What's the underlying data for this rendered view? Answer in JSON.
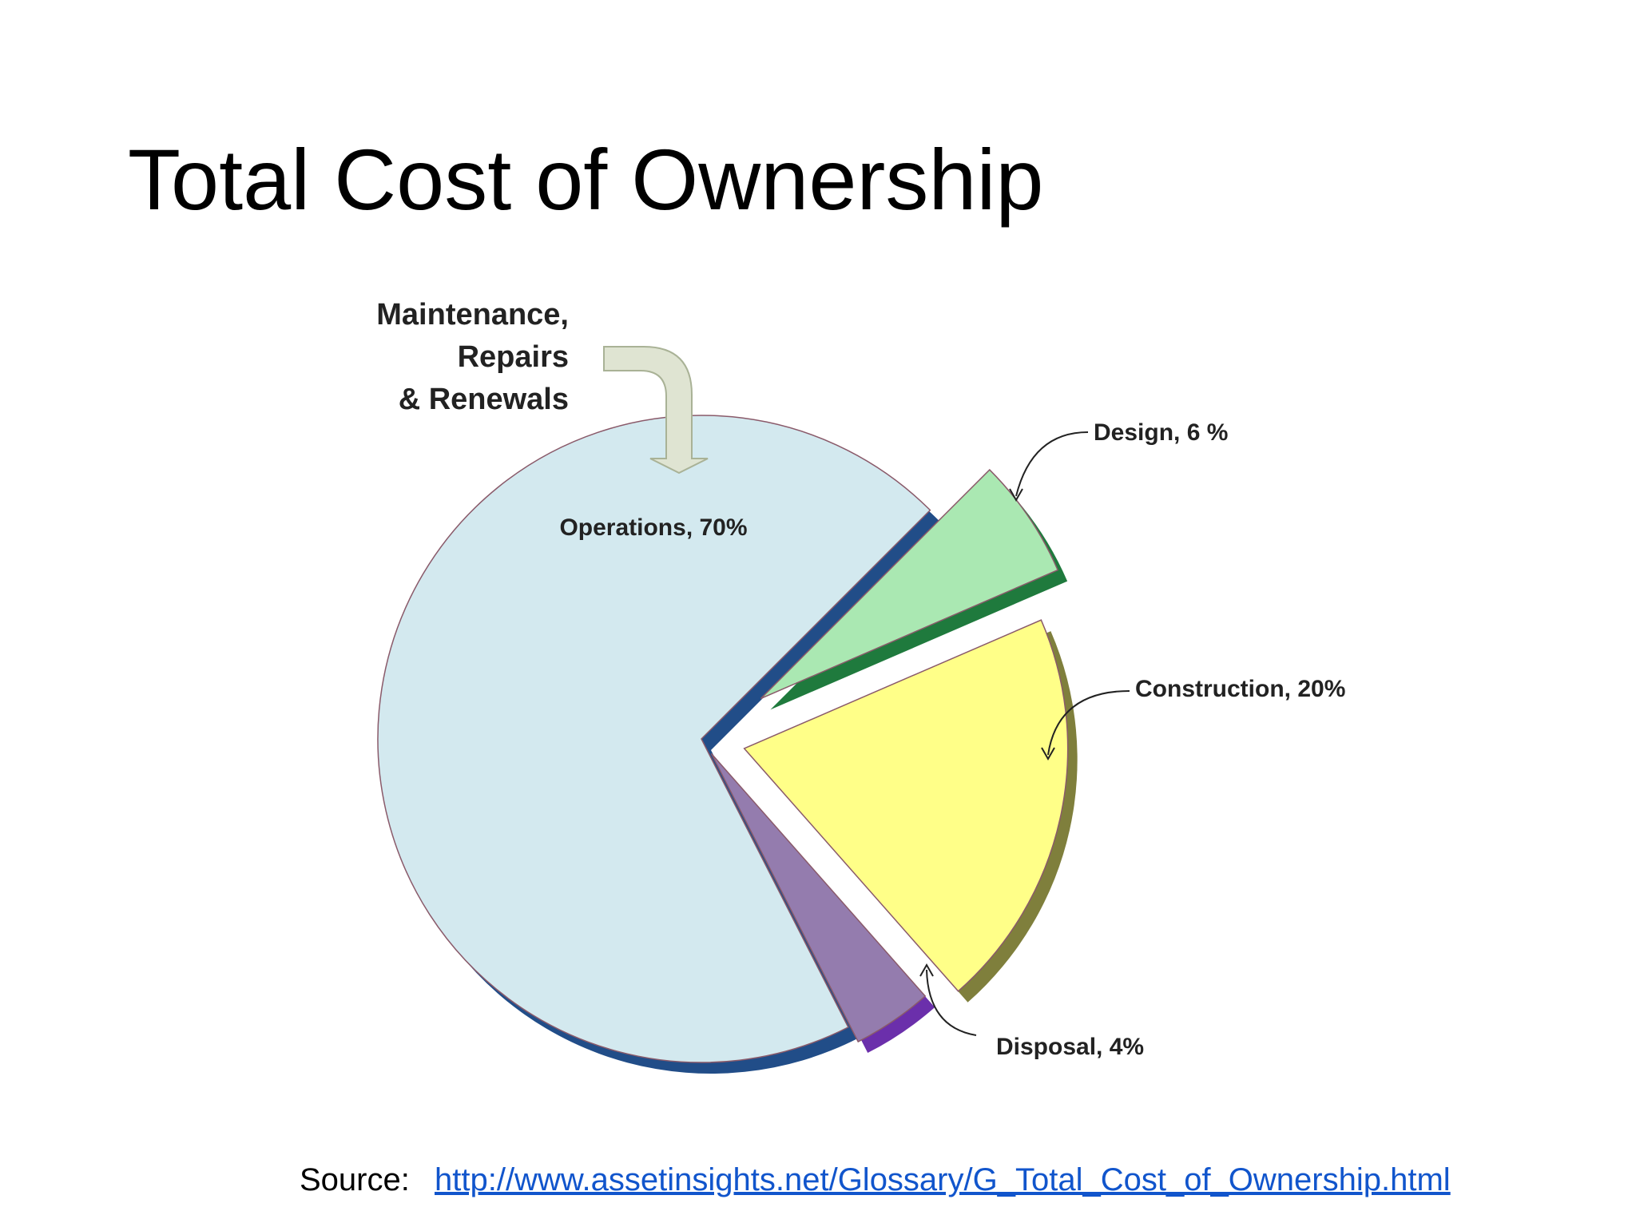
{
  "chart_data": {
    "type": "pie",
    "title": "Total Cost of Ownership",
    "values": [
      70,
      6,
      20,
      4
    ],
    "value_labels": [
      "Operations, 70%",
      "Design, 6 %",
      "Construction, 20%",
      "Disposal, 4%"
    ],
    "colors": [
      "#d3e9ef",
      "#aae8b2",
      "#ffff88",
      "#947cae"
    ],
    "shadow_colors": [
      "#214d88",
      "#1f7a3d",
      "#7f7f3c",
      "#6b2fab"
    ],
    "annotation": [
      "Maintenance,",
      "Repairs",
      "& Renewals"
    ]
  },
  "source": {
    "label": "Source:",
    "link": "http://www.assetinsights.net/Glossary/G_Total_Cost_of_Ownership.html"
  }
}
